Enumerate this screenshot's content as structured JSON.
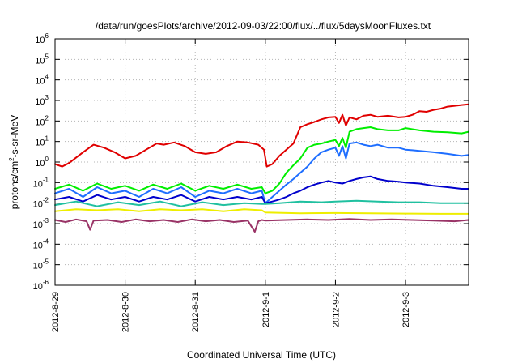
{
  "chart_data": {
    "type": "line",
    "title": "/data/run/goesPlots/archive/2012-09-03/22:00/flux/../flux/5daysMoonFluxes.txt",
    "xlabel": "Coordinated Universal Time (UTC)",
    "ylabel_prefix": "protons/cm",
    "ylabel_sup": "2",
    "ylabel_suffix": "-s-sr-MeV",
    "x_unit": "days since 2012-8-29 00:00 UTC",
    "xlim": [
      0,
      5.9
    ],
    "ylim_log10": [
      -6,
      6
    ],
    "yscale": "log",
    "grid": true,
    "x_ticks": [
      {
        "value": 0,
        "label": "2012-8-29"
      },
      {
        "value": 1,
        "label": "2012-8-30"
      },
      {
        "value": 2,
        "label": "2012-8-31"
      },
      {
        "value": 3,
        "label": "2012-9-1"
      },
      {
        "value": 4,
        "label": "2012-9-2"
      },
      {
        "value": 5,
        "label": "2012-9-3"
      }
    ],
    "y_ticks": [
      {
        "exp": -6,
        "base": "10",
        "sup": "-6"
      },
      {
        "exp": -5,
        "base": "10",
        "sup": "-5"
      },
      {
        "exp": -4,
        "base": "10",
        "sup": "-4"
      },
      {
        "exp": -3,
        "base": "10",
        "sup": "-3"
      },
      {
        "exp": -2,
        "base": "10",
        "sup": "-2"
      },
      {
        "exp": -1,
        "base": "10",
        "sup": "-1"
      },
      {
        "exp": 0,
        "base": "10",
        "sup": "0"
      },
      {
        "exp": 1,
        "base": "10",
        "sup": "1"
      },
      {
        "exp": 2,
        "base": "10",
        "sup": "2"
      },
      {
        "exp": 3,
        "base": "10",
        "sup": "3"
      },
      {
        "exp": 4,
        "base": "10",
        "sup": "4"
      },
      {
        "exp": 5,
        "base": "10",
        "sup": "5"
      },
      {
        "exp": 6,
        "base": "10",
        "sup": "6"
      }
    ],
    "series": [
      {
        "color": "#e00000",
        "x": [
          0,
          0.1,
          0.2,
          0.4,
          0.55,
          0.7,
          0.85,
          1.0,
          1.15,
          1.3,
          1.45,
          1.55,
          1.7,
          1.85,
          2.0,
          2.15,
          2.3,
          2.45,
          2.6,
          2.75,
          2.9,
          2.98,
          3.02,
          3.1,
          3.2,
          3.3,
          3.4,
          3.5,
          3.6,
          3.7,
          3.8,
          3.9,
          4.0,
          4.05,
          4.1,
          4.15,
          4.2,
          4.3,
          4.4,
          4.5,
          4.6,
          4.75,
          4.9,
          5.0,
          5.1,
          5.2,
          5.3,
          5.4,
          5.5,
          5.6,
          5.7,
          5.8,
          5.9
        ],
        "y": [
          0.8,
          0.6,
          0.9,
          3,
          7,
          5,
          3,
          1.5,
          2,
          4,
          8,
          7,
          9,
          6,
          3,
          2.5,
          3,
          6,
          10,
          9,
          7,
          4,
          0.6,
          0.8,
          2,
          4,
          8,
          50,
          70,
          90,
          120,
          150,
          160,
          80,
          200,
          60,
          150,
          120,
          180,
          200,
          160,
          180,
          150,
          160,
          200,
          300,
          280,
          350,
          400,
          500,
          550,
          600,
          650
        ]
      },
      {
        "color": "#00ee00",
        "x": [
          0,
          0.2,
          0.4,
          0.6,
          0.8,
          1.0,
          1.2,
          1.4,
          1.6,
          1.8,
          2.0,
          2.2,
          2.4,
          2.6,
          2.8,
          2.95,
          3.0,
          3.1,
          3.2,
          3.3,
          3.4,
          3.5,
          3.6,
          3.7,
          3.8,
          3.9,
          4.0,
          4.05,
          4.1,
          4.15,
          4.2,
          4.3,
          4.4,
          4.5,
          4.6,
          4.75,
          4.9,
          5.0,
          5.2,
          5.4,
          5.6,
          5.8,
          5.9
        ],
        "y": [
          0.05,
          0.08,
          0.04,
          0.09,
          0.05,
          0.07,
          0.04,
          0.08,
          0.05,
          0.09,
          0.04,
          0.07,
          0.05,
          0.08,
          0.05,
          0.06,
          0.03,
          0.04,
          0.09,
          0.3,
          0.7,
          1.5,
          5,
          7,
          8,
          10,
          12,
          6,
          15,
          5,
          30,
          40,
          45,
          50,
          40,
          35,
          35,
          45,
          35,
          30,
          28,
          25,
          30
        ]
      },
      {
        "color": "#1e6eff",
        "x": [
          0,
          0.2,
          0.4,
          0.6,
          0.8,
          1.0,
          1.2,
          1.4,
          1.6,
          1.8,
          2.0,
          2.2,
          2.4,
          2.6,
          2.8,
          2.95,
          3.0,
          3.1,
          3.2,
          3.3,
          3.4,
          3.5,
          3.6,
          3.7,
          3.8,
          3.9,
          4.0,
          4.05,
          4.1,
          4.15,
          4.2,
          4.3,
          4.4,
          4.5,
          4.6,
          4.75,
          4.9,
          5.0,
          5.2,
          5.4,
          5.6,
          5.8,
          5.9
        ],
        "y": [
          0.03,
          0.05,
          0.02,
          0.06,
          0.03,
          0.04,
          0.02,
          0.05,
          0.03,
          0.06,
          0.02,
          0.04,
          0.03,
          0.05,
          0.03,
          0.04,
          0.01,
          0.02,
          0.04,
          0.08,
          0.15,
          0.3,
          0.6,
          1.5,
          3,
          4,
          5,
          2,
          6,
          1.5,
          8,
          9,
          7,
          6,
          7,
          5,
          5,
          4,
          3.5,
          3,
          2.5,
          2,
          2.2
        ]
      },
      {
        "color": "#0000cc",
        "x": [
          0,
          0.2,
          0.4,
          0.6,
          0.8,
          1.0,
          1.2,
          1.4,
          1.6,
          1.8,
          2.0,
          2.2,
          2.4,
          2.6,
          2.8,
          2.95,
          3.0,
          3.1,
          3.2,
          3.3,
          3.4,
          3.5,
          3.6,
          3.7,
          3.8,
          3.9,
          4.0,
          4.1,
          4.2,
          4.3,
          4.4,
          4.5,
          4.6,
          4.75,
          4.9,
          5.0,
          5.2,
          5.4,
          5.6,
          5.8,
          5.9
        ],
        "y": [
          0.015,
          0.02,
          0.012,
          0.025,
          0.015,
          0.02,
          0.012,
          0.02,
          0.015,
          0.025,
          0.012,
          0.02,
          0.015,
          0.02,
          0.015,
          0.02,
          0.01,
          0.012,
          0.015,
          0.02,
          0.03,
          0.04,
          0.06,
          0.08,
          0.1,
          0.12,
          0.1,
          0.09,
          0.12,
          0.15,
          0.18,
          0.2,
          0.15,
          0.12,
          0.11,
          0.1,
          0.09,
          0.07,
          0.06,
          0.05,
          0.05
        ]
      },
      {
        "color": "#20c0a0",
        "x": [
          0,
          0.3,
          0.6,
          0.9,
          1.2,
          1.5,
          1.8,
          2.1,
          2.4,
          2.7,
          2.95,
          3.0,
          3.2,
          3.5,
          3.8,
          4.0,
          4.3,
          4.6,
          4.9,
          5.2,
          5.5,
          5.9
        ],
        "y": [
          0.008,
          0.012,
          0.007,
          0.011,
          0.008,
          0.012,
          0.007,
          0.011,
          0.008,
          0.01,
          0.009,
          0.009,
          0.01,
          0.012,
          0.011,
          0.012,
          0.013,
          0.012,
          0.011,
          0.011,
          0.01,
          0.01
        ]
      },
      {
        "color": "#eeee00",
        "x": [
          0,
          0.3,
          0.6,
          0.9,
          1.2,
          1.5,
          1.8,
          2.1,
          2.4,
          2.7,
          2.95,
          3.0,
          3.5,
          4.0,
          4.5,
          5.0,
          5.5,
          5.9
        ],
        "y": [
          0.004,
          0.005,
          0.0045,
          0.005,
          0.004,
          0.005,
          0.0045,
          0.005,
          0.004,
          0.005,
          0.0045,
          0.0035,
          0.0032,
          0.0033,
          0.0032,
          0.0031,
          0.003,
          0.003
        ]
      },
      {
        "color": "#993366",
        "x": [
          0,
          0.15,
          0.3,
          0.45,
          0.5,
          0.55,
          0.75,
          0.95,
          1.15,
          1.35,
          1.55,
          1.75,
          1.95,
          2.15,
          2.35,
          2.55,
          2.75,
          2.85,
          2.9,
          2.95,
          3.0,
          3.3,
          3.6,
          3.9,
          4.2,
          4.5,
          4.8,
          5.1,
          5.4,
          5.7,
          5.9
        ],
        "y": [
          0.0015,
          0.0012,
          0.0016,
          0.0013,
          0.0005,
          0.0014,
          0.0015,
          0.0012,
          0.0016,
          0.0013,
          0.0015,
          0.0012,
          0.0016,
          0.0013,
          0.0015,
          0.0012,
          0.0014,
          0.0004,
          0.0013,
          0.0015,
          0.0014,
          0.0015,
          0.0016,
          0.0015,
          0.0017,
          0.0015,
          0.0016,
          0.0015,
          0.0014,
          0.0013,
          0.0015
        ]
      }
    ]
  }
}
